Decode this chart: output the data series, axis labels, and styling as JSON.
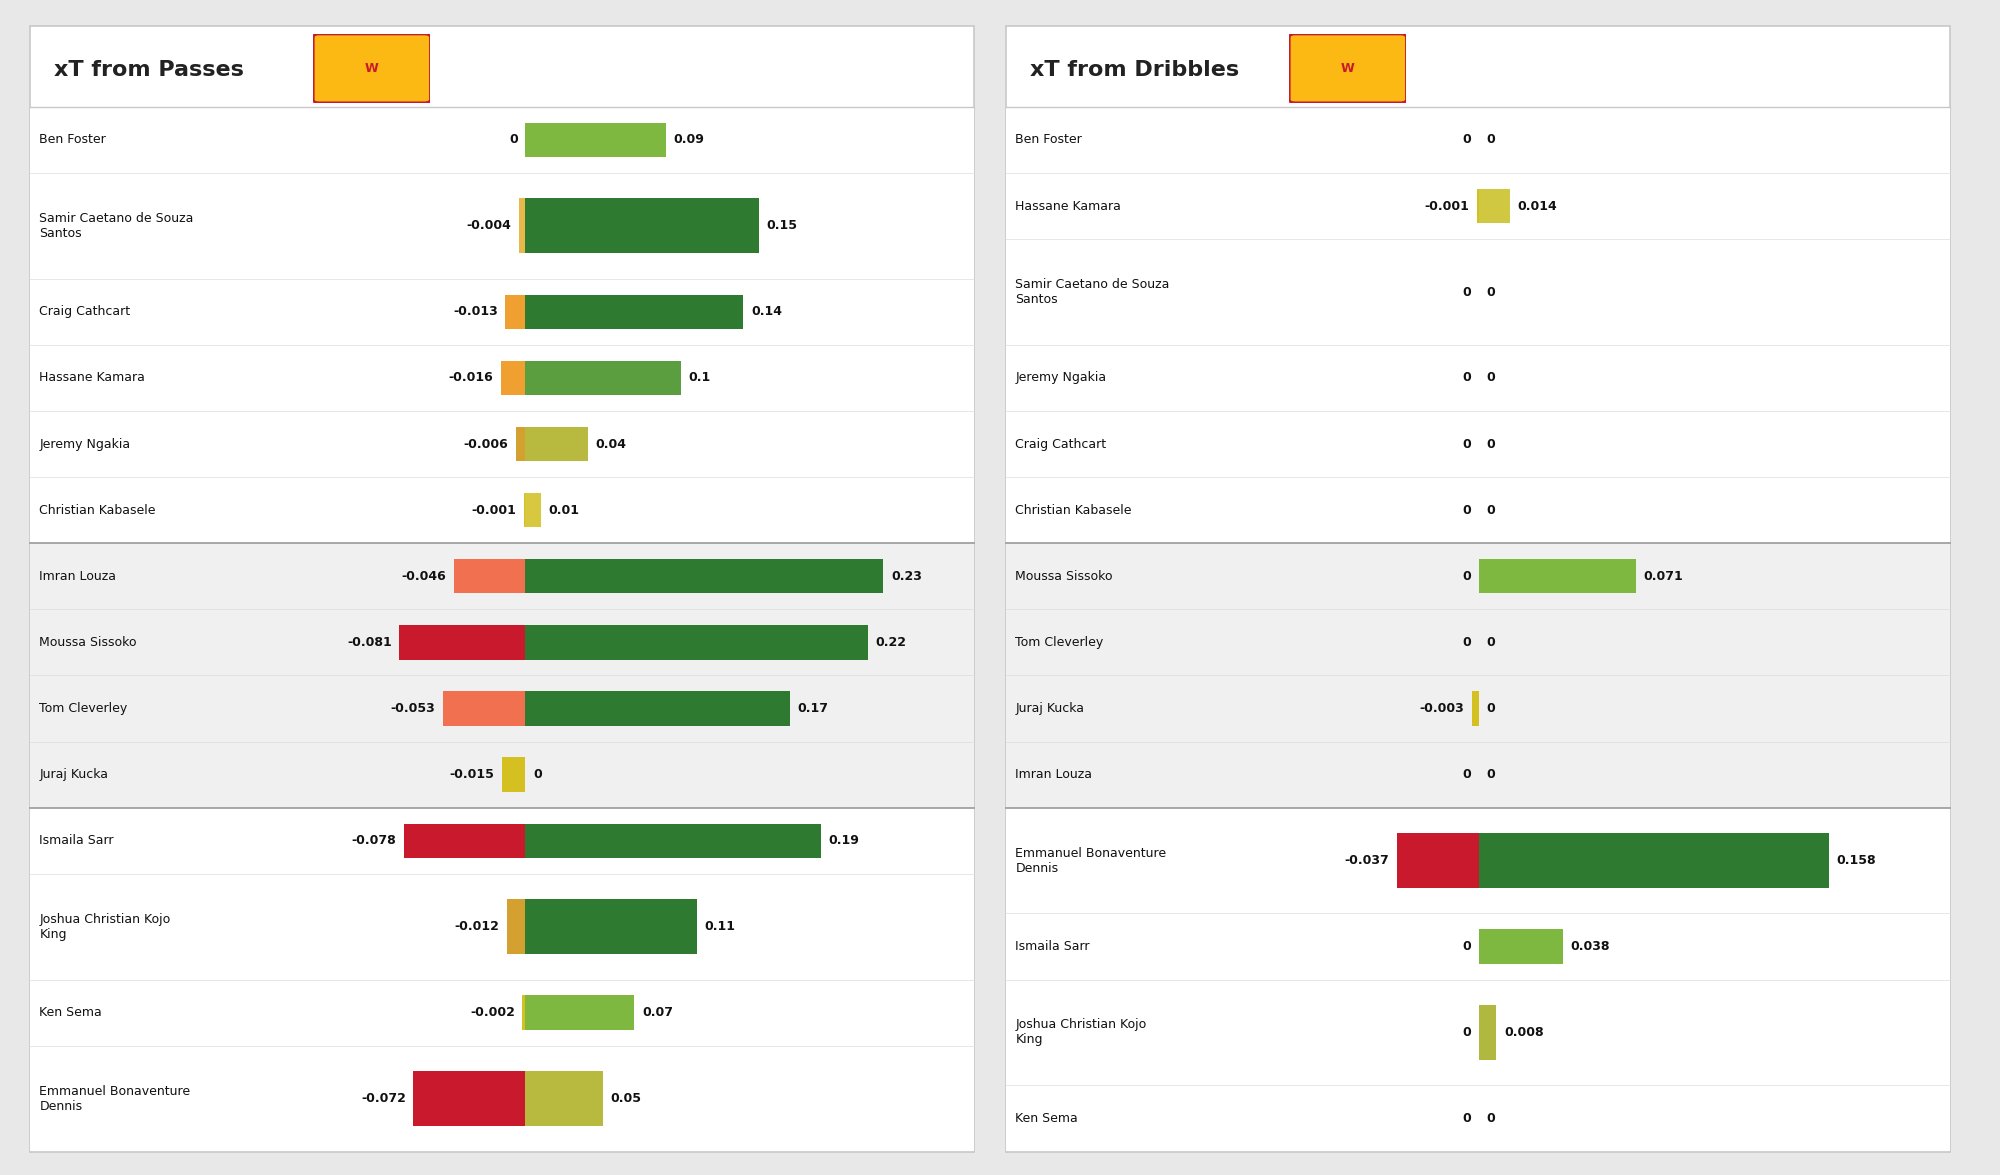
{
  "passes": {
    "players": [
      "Ben Foster",
      "Samir Caetano de Souza\nSantos",
      "Craig Cathcart",
      "Hassane Kamara",
      "Jeremy Ngakia",
      "Christian Kabasele",
      "Imran Louza",
      "Moussa Sissoko",
      "Tom Cleverley",
      "Juraj Kucka",
      "Ismaila Sarr",
      "Joshua Christian Kojo\nKing",
      "Ken Sema",
      "Emmanuel Bonaventure\nDennis"
    ],
    "neg_vals": [
      0,
      -0.004,
      -0.013,
      -0.016,
      -0.006,
      -0.001,
      -0.046,
      -0.081,
      -0.053,
      -0.015,
      -0.078,
      -0.012,
      -0.002,
      -0.072
    ],
    "pos_vals": [
      0.09,
      0.15,
      0.14,
      0.1,
      0.04,
      0.01,
      0.23,
      0.22,
      0.17,
      0.0,
      0.19,
      0.11,
      0.07,
      0.05
    ],
    "groups": [
      0,
      0,
      0,
      0,
      0,
      0,
      1,
      1,
      1,
      1,
      2,
      2,
      2,
      2
    ],
    "neg_colors": [
      "#ffffff",
      "#e8b84b",
      "#f0a030",
      "#f0a030",
      "#d4a030",
      "#d4c020",
      "#f07050",
      "#c8192d",
      "#f07050",
      "#d4c020",
      "#c8192d",
      "#d4a030",
      "#d4c020",
      "#c8192d"
    ],
    "pos_colors": [
      "#7fb840",
      "#2d7a30",
      "#2d7a30",
      "#5a9e40",
      "#b8ba40",
      "#d8c840",
      "#2d7a30",
      "#2d7a30",
      "#2d7a30",
      "#d8c840",
      "#2d7a30",
      "#2d7a30",
      "#7fb840",
      "#b8ba40"
    ],
    "xlim": [
      -0.1,
      0.27
    ]
  },
  "dribbles": {
    "players": [
      "Ben Foster",
      "Hassane Kamara",
      "Samir Caetano de Souza\nSantos",
      "Jeremy Ngakia",
      "Craig Cathcart",
      "Christian Kabasele",
      "Moussa Sissoko",
      "Tom Cleverley",
      "Juraj Kucka",
      "Imran Louza",
      "Emmanuel Bonaventure\nDennis",
      "Ismaila Sarr",
      "Joshua Christian Kojo\nKing",
      "Ken Sema"
    ],
    "neg_vals": [
      0,
      -0.001,
      0,
      0,
      0,
      0,
      0,
      0,
      -0.003,
      0,
      -0.037,
      0,
      0,
      0
    ],
    "pos_vals": [
      0,
      0.014,
      0,
      0,
      0,
      0,
      0.071,
      0,
      0,
      0,
      0.158,
      0.038,
      0.008,
      0
    ],
    "groups": [
      0,
      0,
      0,
      0,
      0,
      0,
      1,
      1,
      1,
      1,
      2,
      2,
      2,
      2
    ],
    "neg_colors": [
      "#ffffff",
      "#d4c020",
      "#ffffff",
      "#ffffff",
      "#ffffff",
      "#ffffff",
      "#ffffff",
      "#ffffff",
      "#d4c020",
      "#ffffff",
      "#c8192d",
      "#ffffff",
      "#ffffff",
      "#ffffff"
    ],
    "pos_colors": [
      "#ffffff",
      "#d0c840",
      "#ffffff",
      "#ffffff",
      "#ffffff",
      "#ffffff",
      "#7fb840",
      "#ffffff",
      "#ffffff",
      "#ffffff",
      "#2d7a30",
      "#7fb840",
      "#b0b840",
      "#ffffff"
    ],
    "xlim": [
      -0.06,
      0.2
    ]
  },
  "title_passes": "xT from Passes",
  "title_dribbles": "xT from Dribbles",
  "row_heights_passes": [
    1,
    1.6,
    1,
    1,
    1,
    1,
    1,
    1,
    1,
    1,
    1,
    1.6,
    1,
    1.6
  ],
  "row_heights_dribbles": [
    1,
    1,
    1.6,
    1,
    1,
    1,
    1,
    1,
    1,
    1,
    1.6,
    1,
    1.6,
    1
  ],
  "group_bgs": [
    "#ffffff",
    "#f0f0f0",
    "#ffffff"
  ],
  "label_fontsize": 9,
  "value_fontsize": 9,
  "title_fontsize": 16
}
